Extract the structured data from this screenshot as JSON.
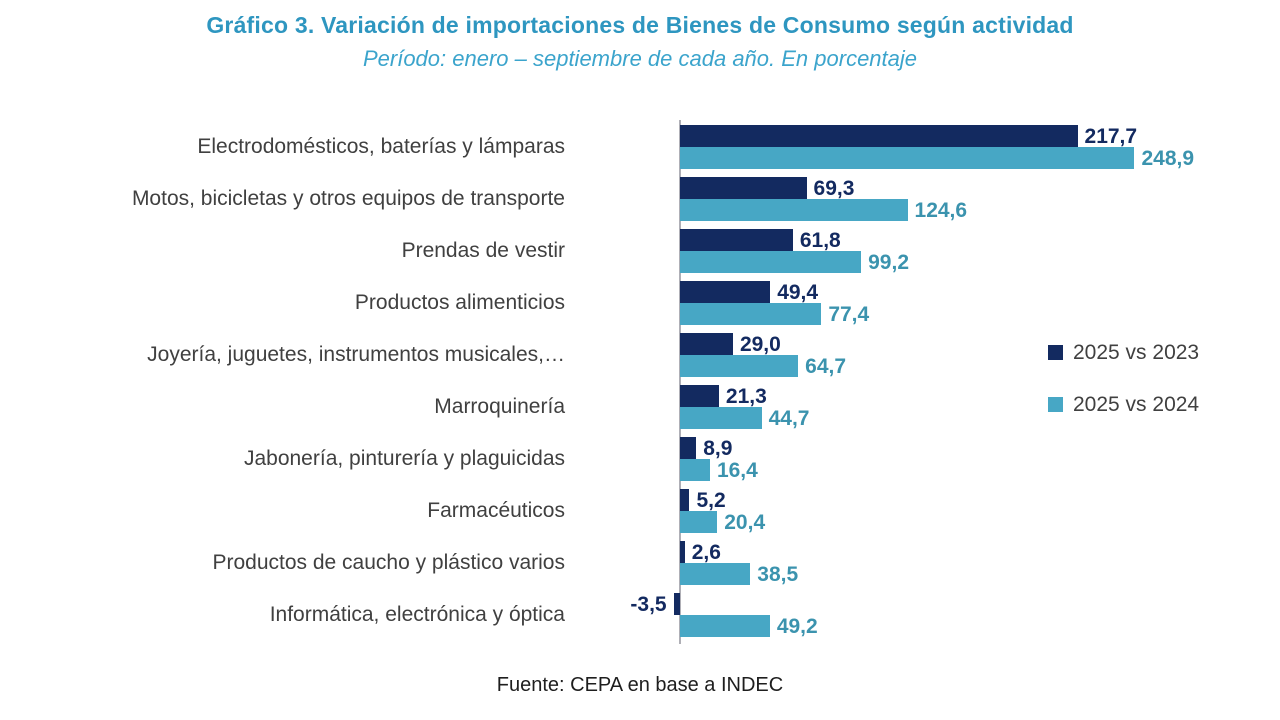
{
  "header": {
    "title": "Gráfico 3. Variación de importaciones de Bienes de Consumo según actividad",
    "subtitle": "Período: enero – septiembre de cada año. En porcentaje"
  },
  "legend": [
    {
      "label": "2025 vs 2023",
      "color": "#132A60"
    },
    {
      "label": "2025 vs 2024",
      "color": "#47A7C5"
    }
  ],
  "footer": {
    "source": "Fuente: CEPA en base a INDEC"
  },
  "chart_data": {
    "type": "bar",
    "orientation": "horizontal",
    "title": "Gráfico 3. Variación de importaciones de Bienes de Consumo según actividad",
    "subtitle": "Período: enero – septiembre de cada año. En porcentaje",
    "categories": [
      "Electrodomésticos, baterías y lámparas",
      "Motos, bicicletas y otros equipos de transporte",
      "Prendas de vestir",
      "Productos alimenticios",
      "Joyería, juguetes, instrumentos musicales,…",
      "Marroquinería",
      "Jabonería, pinturería y plaguicidas",
      "Farmacéuticos",
      "Productos de caucho y plástico varios",
      "Informática, electrónica y óptica"
    ],
    "series": [
      {
        "name": "2025 vs 2023",
        "color": "#132A60",
        "label_color": "#132A60",
        "values": [
          217.7,
          69.3,
          61.8,
          49.4,
          29.0,
          21.3,
          8.9,
          5.2,
          2.6,
          -3.5
        ]
      },
      {
        "name": "2025 vs 2024",
        "color": "#47A7C5",
        "label_color": "#3B93AE",
        "values": [
          248.9,
          124.6,
          99.2,
          77.4,
          64.7,
          44.7,
          16.4,
          20.4,
          38.5,
          49.2
        ]
      }
    ],
    "value_format": "one decimal, comma as decimal separator",
    "xlim": [
      -60,
      330
    ],
    "grid": false,
    "axis_color": "#AFAFB6",
    "legend_position": "right",
    "source": "Fuente: CEPA en base a INDEC"
  }
}
